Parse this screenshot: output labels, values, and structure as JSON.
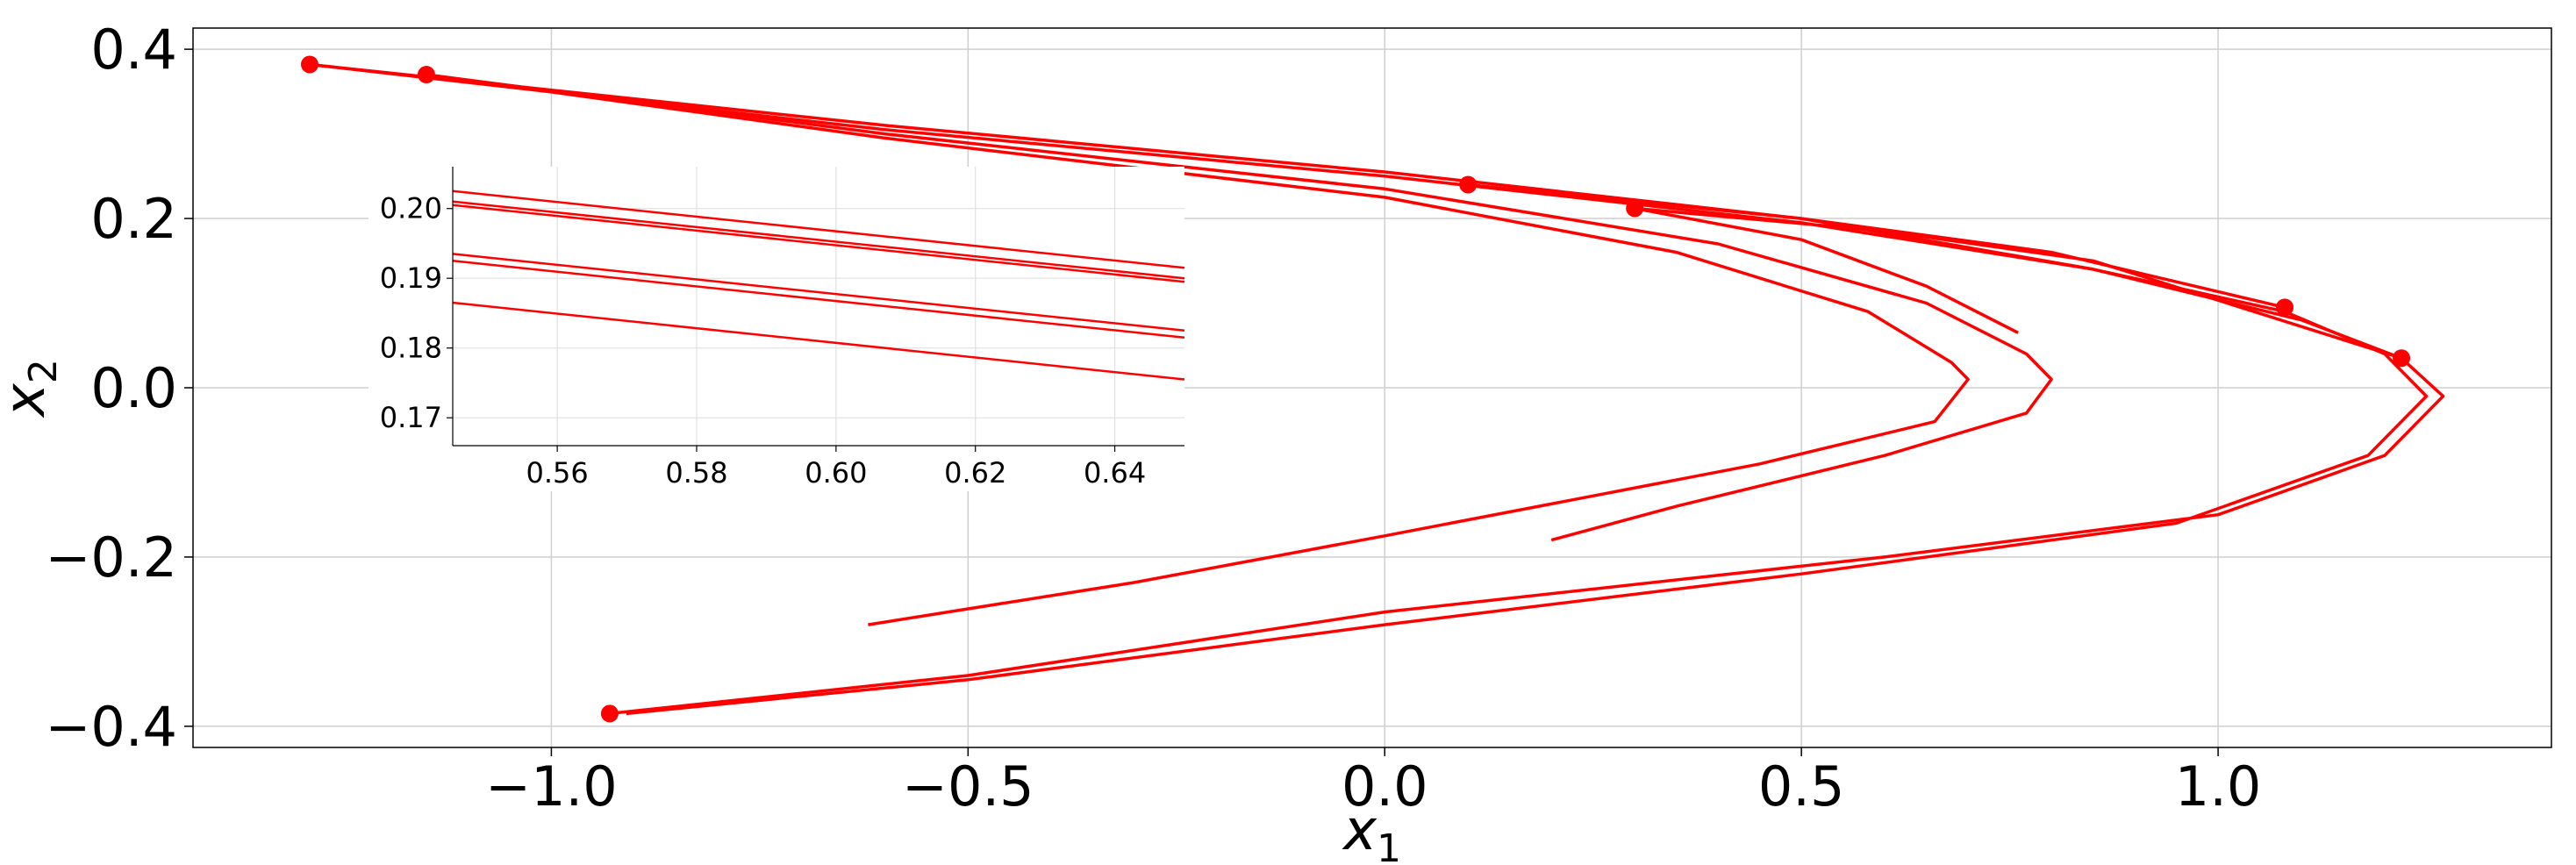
{
  "chart_data": [
    {
      "type": "line",
      "title": "",
      "xlabel": "x",
      "xlabel_sub": "1",
      "ylabel": "x",
      "ylabel_sub": "2",
      "xlim": [
        -1.43,
        1.4
      ],
      "ylim": [
        -0.425,
        0.425
      ],
      "xticks": [
        -1.0,
        -0.5,
        0.0,
        0.5,
        1.0
      ],
      "xtick_labels": [
        "−1.0",
        "−0.5",
        "0.0",
        "0.5",
        "1.0"
      ],
      "yticks": [
        -0.4,
        -0.2,
        0.0,
        0.2,
        0.4
      ],
      "ytick_labels": [
        "−0.4",
        "−0.2",
        "0.0",
        "0.2",
        "0.4"
      ],
      "grid": true,
      "color": "#ff0000",
      "series": [
        {
          "points": [
            [
              -1.29,
              0.382
            ],
            [
              -0.6,
              0.31
            ],
            [
              0.0,
              0.255
            ],
            [
              0.5,
              0.2
            ],
            [
              0.85,
              0.14
            ],
            [
              1.1,
              0.08
            ],
            [
              1.22,
              0.035
            ],
            [
              1.27,
              -0.01
            ],
            [
              1.2,
              -0.08
            ],
            [
              1.0,
              -0.15
            ],
            [
              0.6,
              -0.2
            ],
            [
              0.0,
              -0.265
            ],
            [
              -0.5,
              -0.34
            ],
            [
              -0.93,
              -0.385
            ]
          ]
        },
        {
          "points": [
            [
              -1.29,
              0.382
            ],
            [
              -0.6,
              0.305
            ],
            [
              0.0,
              0.25
            ],
            [
              0.5,
              0.195
            ],
            [
              0.85,
              0.14
            ],
            [
              1.08,
              0.09
            ],
            [
              1.2,
              0.04
            ],
            [
              1.25,
              -0.01
            ],
            [
              1.18,
              -0.08
            ],
            [
              0.95,
              -0.16
            ],
            [
              0.5,
              -0.22
            ],
            [
              0.0,
              -0.28
            ],
            [
              -0.5,
              -0.345
            ],
            [
              -0.91,
              -0.385
            ]
          ]
        },
        {
          "points": [
            [
              -1.15,
              0.37
            ],
            [
              -0.6,
              0.3
            ],
            [
              0.0,
              0.235
            ],
            [
              0.4,
              0.17
            ],
            [
              0.65,
              0.1
            ],
            [
              0.77,
              0.04
            ],
            [
              0.8,
              0.01
            ],
            [
              0.77,
              -0.03
            ],
            [
              0.6,
              -0.08
            ],
            [
              0.35,
              -0.14
            ],
            [
              0.2,
              -0.18
            ]
          ]
        },
        {
          "points": [
            [
              -1.15,
              0.37
            ],
            [
              -0.6,
              0.295
            ],
            [
              0.0,
              0.225
            ],
            [
              0.35,
              0.16
            ],
            [
              0.58,
              0.09
            ],
            [
              0.68,
              0.03
            ],
            [
              0.7,
              0.01
            ],
            [
              0.66,
              -0.04
            ],
            [
              0.45,
              -0.09
            ],
            [
              0.0,
              -0.175
            ],
            [
              -0.3,
              -0.23
            ],
            [
              -0.62,
              -0.28
            ]
          ]
        },
        {
          "points": [
            [
              0.1,
              0.24
            ],
            [
              0.5,
              0.2
            ],
            [
              0.8,
              0.16
            ],
            [
              1.08,
              0.095
            ]
          ]
        },
        {
          "points": [
            [
              0.3,
              0.212
            ],
            [
              0.6,
              0.185
            ],
            [
              0.85,
              0.15
            ],
            [
              1.22,
              0.035
            ]
          ]
        },
        {
          "points": [
            [
              0.3,
              0.212
            ],
            [
              0.5,
              0.175
            ],
            [
              0.65,
              0.12
            ],
            [
              0.76,
              0.065
            ]
          ]
        }
      ],
      "markers": [
        {
          "x": -1.29,
          "y": 0.382
        },
        {
          "x": -1.15,
          "y": 0.37
        },
        {
          "x": 0.1,
          "y": 0.24
        },
        {
          "x": 0.3,
          "y": 0.212
        },
        {
          "x": 1.08,
          "y": 0.095
        },
        {
          "x": 1.22,
          "y": 0.035
        },
        {
          "x": -0.93,
          "y": -0.385
        }
      ],
      "inset": {
        "xlim": [
          0.545,
          0.65
        ],
        "ylim": [
          0.166,
          0.206
        ],
        "xticks": [
          0.56,
          0.58,
          0.6,
          0.62,
          0.64
        ],
        "xtick_labels": [
          "0.56",
          "0.58",
          "0.60",
          "0.62",
          "0.64"
        ],
        "yticks": [
          0.17,
          0.18,
          0.19,
          0.2
        ],
        "ytick_labels": [
          "0.17",
          "0.18",
          "0.19",
          "0.20"
        ],
        "grid": true,
        "series": [
          {
            "points": [
              [
                0.545,
                0.2025
              ],
              [
                0.65,
                0.1915
              ]
            ]
          },
          {
            "points": [
              [
                0.545,
                0.201
              ],
              [
                0.65,
                0.19
              ]
            ]
          },
          {
            "points": [
              [
                0.545,
                0.2005
              ],
              [
                0.65,
                0.1895
              ]
            ]
          },
          {
            "points": [
              [
                0.545,
                0.1935
              ],
              [
                0.65,
                0.1825
              ]
            ]
          },
          {
            "points": [
              [
                0.545,
                0.1925
              ],
              [
                0.65,
                0.1815
              ]
            ]
          },
          {
            "points": [
              [
                0.545,
                0.1865
              ],
              [
                0.65,
                0.1755
              ]
            ]
          }
        ]
      }
    }
  ]
}
